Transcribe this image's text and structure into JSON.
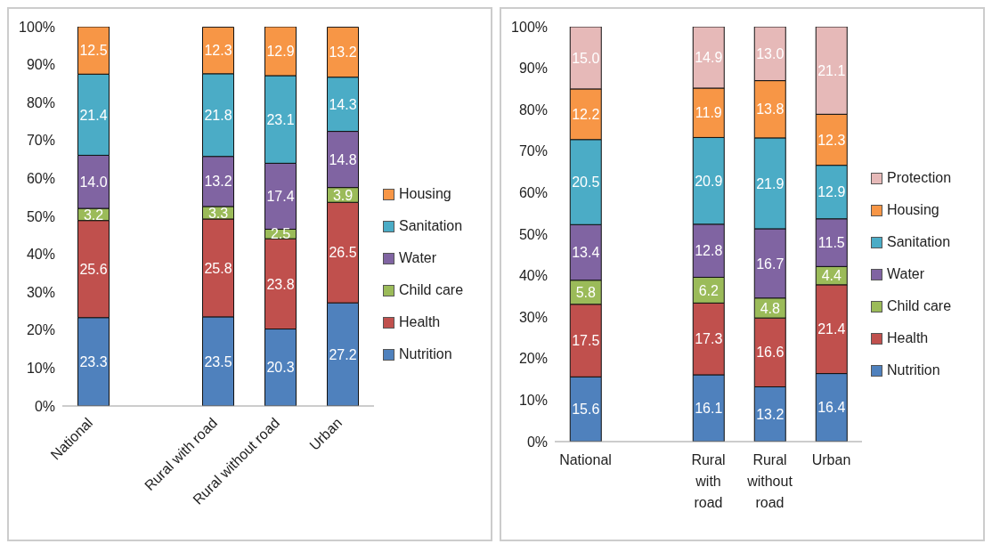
{
  "chart_data": [
    {
      "type": "bar",
      "stacked": true,
      "categories": [
        "National",
        null,
        "Rural with road",
        "Rural without road",
        "Urban"
      ],
      "series": [
        {
          "name": "Nutrition",
          "color": "#4f81bd",
          "values": [
            23.3,
            null,
            23.5,
            20.3,
            27.2
          ],
          "value_labels": [
            "23.3",
            null,
            "23.5",
            "20.3",
            "27.2"
          ]
        },
        {
          "name": "Health",
          "color": "#c0504d",
          "values": [
            25.6,
            null,
            25.8,
            23.8,
            26.5
          ],
          "value_labels": [
            "25.6",
            null,
            "25.8",
            "23.8",
            "26.5"
          ]
        },
        {
          "name": "Child care",
          "color": "#9bbb59",
          "values": [
            3.2,
            null,
            3.3,
            2.5,
            3.9
          ],
          "value_labels": [
            "3.2",
            null,
            "3.3",
            "2.5",
            "3.9"
          ]
        },
        {
          "name": "Water",
          "color": "#8064a2",
          "values": [
            14,
            null,
            13.2,
            17.4,
            14.8
          ],
          "value_labels": [
            "14.0",
            null,
            "13.2",
            "17.4",
            "14.8"
          ]
        },
        {
          "name": "Sanitation",
          "color": "#4bacc6",
          "values": [
            21.4,
            null,
            21.8,
            23.1,
            14.3
          ],
          "value_labels": [
            "21.4",
            null,
            "21.8",
            "23.1",
            "14.3"
          ]
        },
        {
          "name": "Housing",
          "color": "#f79646",
          "values": [
            12.5,
            null,
            12.3,
            12.9,
            13.2
          ],
          "value_labels": [
            "12.5",
            null,
            "12.3",
            "12.9",
            "13.2"
          ]
        }
      ],
      "ylim": [
        0,
        100
      ],
      "yticks": [
        {
          "value": 0,
          "label": "0%"
        },
        {
          "value": 10,
          "label": "10%"
        },
        {
          "value": 20,
          "label": "20%"
        },
        {
          "value": 30,
          "label": "30%"
        },
        {
          "value": 40,
          "label": "40%"
        },
        {
          "value": 50,
          "label": "50%"
        },
        {
          "value": 60,
          "label": "60%"
        },
        {
          "value": 70,
          "label": "70%"
        },
        {
          "value": 80,
          "label": "80%"
        },
        {
          "value": 90,
          "label": "90%"
        },
        {
          "value": 100,
          "label": "100%"
        }
      ],
      "legend": "right",
      "grid": false
    },
    {
      "type": "bar",
      "stacked": true,
      "categories": [
        "National",
        null,
        "Rural with road",
        "Rural without road",
        "Urban"
      ],
      "series": [
        {
          "name": "Nutrition",
          "color": "#4f81bd",
          "values": [
            15.6,
            null,
            16.1,
            13.2,
            16.4
          ],
          "value_labels": [
            "15.6",
            null,
            "16.1",
            "13.2",
            "16.4"
          ]
        },
        {
          "name": "Health",
          "color": "#c0504d",
          "values": [
            17.5,
            null,
            17.3,
            16.6,
            21.4
          ],
          "value_labels": [
            "17.5",
            null,
            "17.3",
            "16.6",
            "21.4"
          ]
        },
        {
          "name": "Child care",
          "color": "#9bbb59",
          "values": [
            5.8,
            null,
            6.2,
            4.8,
            4.4
          ],
          "value_labels": [
            "5.8",
            null,
            "6.2",
            "4.8",
            "4.4"
          ]
        },
        {
          "name": "Water",
          "color": "#8064a2",
          "values": [
            13.4,
            null,
            12.8,
            16.7,
            11.5
          ],
          "value_labels": [
            "13.4",
            null,
            "12.8",
            "16.7",
            "11.5"
          ]
        },
        {
          "name": "Sanitation",
          "color": "#4bacc6",
          "values": [
            20.5,
            null,
            20.9,
            21.9,
            12.9
          ],
          "value_labels": [
            "20.5",
            null,
            "20.9",
            "21.9",
            "12.9"
          ]
        },
        {
          "name": "Housing",
          "color": "#f79646",
          "values": [
            12.2,
            null,
            11.9,
            13.8,
            12.3
          ],
          "value_labels": [
            "12.2",
            null,
            "11.9",
            "13.8",
            "12.3"
          ]
        },
        {
          "name": "Protection",
          "color": "#e6b9b8",
          "values": [
            15,
            null,
            14.9,
            13,
            21.1
          ],
          "value_labels": [
            "15.0",
            null,
            "14.9",
            "13.0",
            "21.1"
          ]
        }
      ],
      "ylim": [
        0,
        100
      ],
      "yticks": [
        {
          "value": 0,
          "label": "0%"
        },
        {
          "value": 10,
          "label": "10%"
        },
        {
          "value": 20,
          "label": "20%"
        },
        {
          "value": 30,
          "label": "30%"
        },
        {
          "value": 40,
          "label": "40%"
        },
        {
          "value": 50,
          "label": "50%"
        },
        {
          "value": 60,
          "label": "60%"
        },
        {
          "value": 70,
          "label": "70%"
        },
        {
          "value": 80,
          "label": "80%"
        },
        {
          "value": 90,
          "label": "90%"
        },
        {
          "value": 100,
          "label": "100%"
        }
      ],
      "legend": "right",
      "grid": false
    }
  ]
}
